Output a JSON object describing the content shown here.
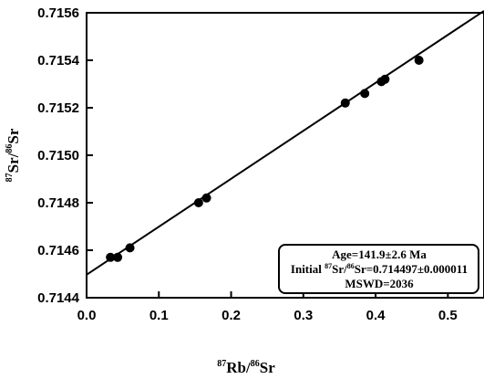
{
  "chart_data": {
    "type": "scatter",
    "title": "",
    "xlabel": {
      "sup1": "87",
      "text1": "Rb/",
      "sup2": "86",
      "text2": "Sr"
    },
    "ylabel": {
      "sup1": "87",
      "text1": "Sr/",
      "sup2": "86",
      "text2": "Sr"
    },
    "xlim": [
      0.0,
      0.55
    ],
    "ylim": [
      0.7144,
      0.7156
    ],
    "xticks": [
      0.0,
      0.1,
      0.2,
      0.3,
      0.4,
      0.5
    ],
    "xtick_labels": [
      "0.0",
      "0.1",
      "0.2",
      "0.3",
      "0.4",
      "0.5"
    ],
    "yticks": [
      0.7144,
      0.7146,
      0.7148,
      0.715,
      0.7152,
      0.7154,
      0.7156
    ],
    "ytick_labels": [
      "0.7144",
      "0.7146",
      "0.7148",
      "0.7150",
      "0.7152",
      "0.7154",
      "0.7156"
    ],
    "grid": false,
    "points": [
      {
        "x": 0.033,
        "y": 0.71457
      },
      {
        "x": 0.043,
        "y": 0.71457
      },
      {
        "x": 0.06,
        "y": 0.71461
      },
      {
        "x": 0.155,
        "y": 0.7148
      },
      {
        "x": 0.166,
        "y": 0.71482
      },
      {
        "x": 0.358,
        "y": 0.71522
      },
      {
        "x": 0.385,
        "y": 0.71526
      },
      {
        "x": 0.408,
        "y": 0.71531
      },
      {
        "x": 0.413,
        "y": 0.71532
      },
      {
        "x": 0.46,
        "y": 0.7154
      }
    ],
    "fit_line": {
      "x": [
        0.0,
        0.55
      ],
      "y": [
        0.714497,
        0.715608
      ]
    },
    "annotation": {
      "line1": "Age=141.9±2.6 Ma",
      "line2_prefix": "Initial ",
      "line2_sup1": "87",
      "line2_mid": "Sr/",
      "line2_sup2": "86",
      "line2_rest": "Sr=0.714497±0.000011",
      "line3": "MSWD=2036"
    },
    "colors": {
      "line": "#000000",
      "points": "#000000",
      "background": "#ffffff"
    }
  }
}
